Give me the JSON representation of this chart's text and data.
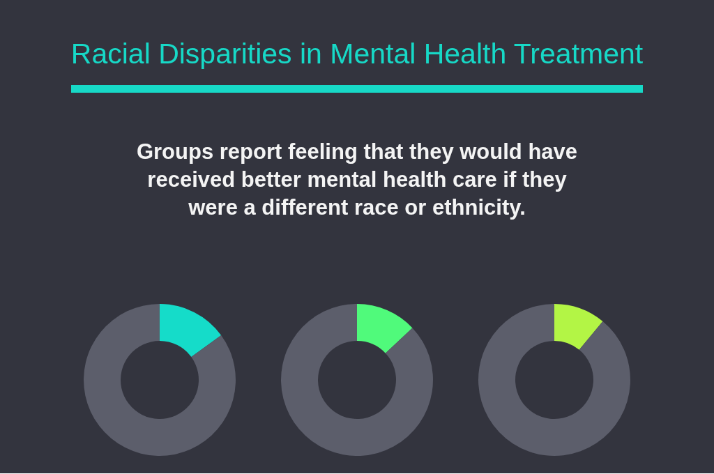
{
  "chart_data": [
    {
      "type": "donut",
      "title": "Racial Disparities in Mental Health Treatment",
      "subtitle": "Groups report feeling that they would have received better mental health care if they were a different race or ethnicity.",
      "categories": [
        null,
        null
      ],
      "values": [
        15,
        85
      ],
      "colors": [
        "#15dcc9",
        "#5c5e6b"
      ]
    },
    {
      "type": "donut",
      "categories": [
        null,
        null
      ],
      "values": [
        13,
        87
      ],
      "colors": [
        "#50fa7b",
        "#5c5e6b"
      ]
    },
    {
      "type": "donut",
      "categories": [
        null,
        null
      ],
      "values": [
        11,
        89
      ],
      "colors": [
        "#b3f545",
        "#5c5e6b"
      ]
    }
  ]
}
